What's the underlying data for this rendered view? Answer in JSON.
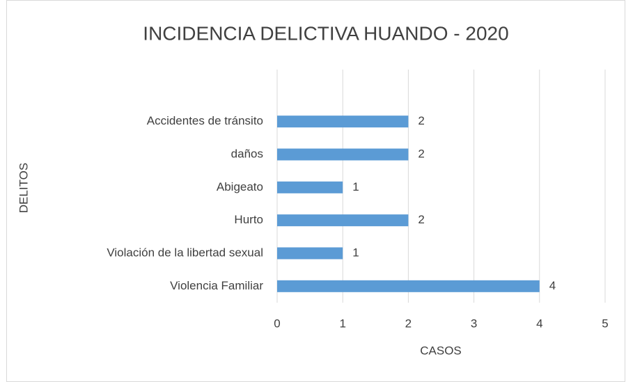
{
  "chart_data": {
    "type": "bar",
    "orientation": "horizontal",
    "title": "INCIDENCIA DELICTIVA HUANDO - 2020",
    "x_label": "CASOS",
    "y_label": "DELITOS",
    "categories": [
      "Accidentes de tránsito",
      "daños",
      "Abigeato",
      "Hurto",
      "Violación de la libertad sexual",
      "Violencia Familiar"
    ],
    "values": [
      2,
      2,
      1,
      2,
      1,
      4
    ],
    "color": "#5b9bd5",
    "xlim": [
      0,
      5
    ],
    "xticks": [
      0,
      1,
      2,
      3,
      4,
      5
    ],
    "grid": true
  }
}
